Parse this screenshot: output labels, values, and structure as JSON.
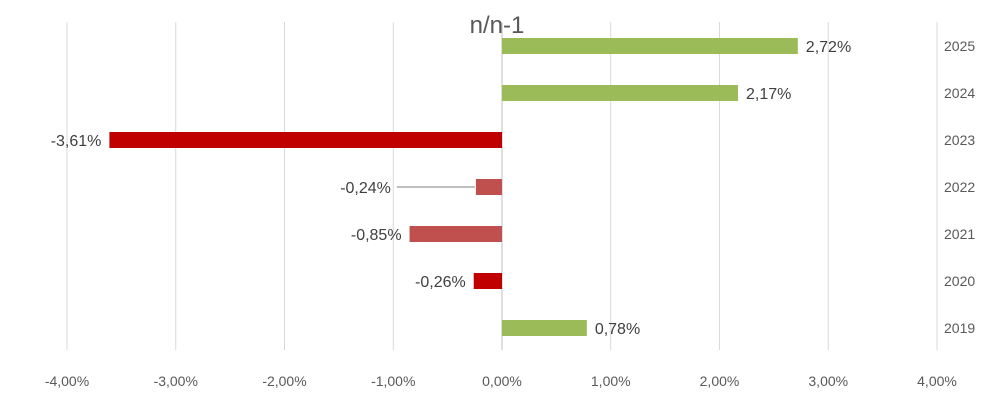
{
  "chart_data": {
    "type": "bar",
    "orientation": "horizontal",
    "title": "n/n-1",
    "categories": [
      "2025",
      "2024",
      "2023",
      "2022",
      "2021",
      "2020",
      "2019"
    ],
    "values": [
      2.72,
      2.17,
      -3.61,
      -0.24,
      -0.85,
      -0.26,
      0.78
    ],
    "data_labels": [
      "2,72%",
      "2,17%",
      "-3,61%",
      "-0,24%",
      "-0,85%",
      "-0,26%",
      "0,78%"
    ],
    "bar_colors": [
      "#9bbb59",
      "#9bbb59",
      "#c00000",
      "#c0504d",
      "#c0504d",
      "#c00000",
      "#9bbb59"
    ],
    "xlim": [
      -4,
      4
    ],
    "x_ticks": [
      -4,
      -3,
      -2,
      -1,
      0,
      1,
      2,
      3,
      4
    ],
    "x_tick_labels": [
      "-4,00%",
      "-3,00%",
      "-2,00%",
      "-1,00%",
      "0,00%",
      "1,00%",
      "2,00%",
      "3,00%",
      "4,00%"
    ],
    "xlabel": "",
    "ylabel": "",
    "grid": true,
    "legend": "none",
    "colors": {
      "positive": "#9bbb59",
      "negative_dark": "#c00000",
      "negative_light": "#c0504d",
      "grid": "#d9d9d9",
      "text": "#595959"
    }
  }
}
